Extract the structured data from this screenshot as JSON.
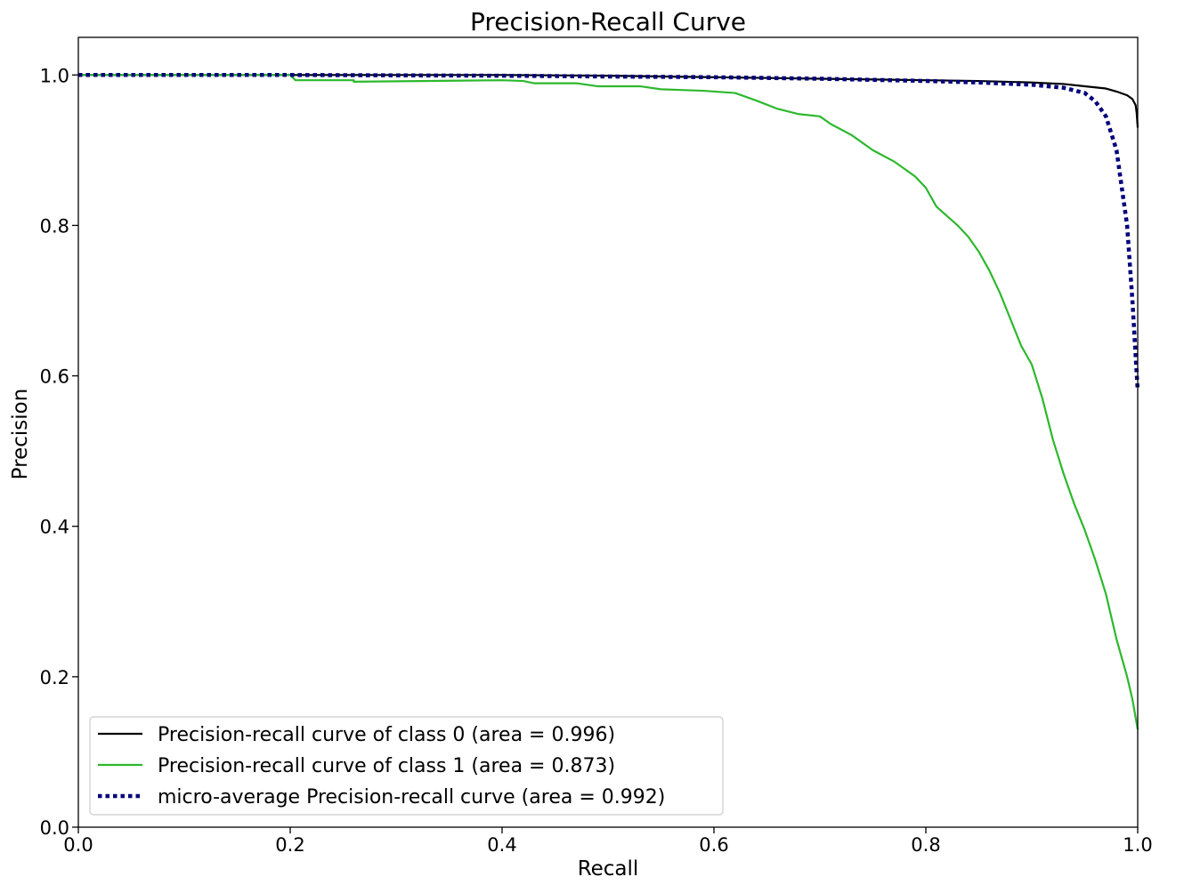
{
  "chart_data": {
    "type": "line",
    "title": "Precision-Recall Curve",
    "xlabel": "Recall",
    "ylabel": "Precision",
    "xlim": [
      0.0,
      1.0
    ],
    "ylim": [
      0.0,
      1.05
    ],
    "x_ticks": [
      "0.0",
      "0.2",
      "0.4",
      "0.6",
      "0.8",
      "1.0"
    ],
    "y_ticks": [
      "0.0",
      "0.2",
      "0.4",
      "0.6",
      "0.8",
      "1.0"
    ],
    "grid": false,
    "legend_position": "lower-left",
    "series": [
      {
        "name": "Precision-recall curve of class 0 (area = 0.996)",
        "color": "#000000",
        "style": "solid",
        "points": [
          [
            0.0,
            1.0
          ],
          [
            0.2,
            1.0
          ],
          [
            0.4,
            1.0
          ],
          [
            0.5,
            0.999
          ],
          [
            0.6,
            0.997
          ],
          [
            0.7,
            0.995
          ],
          [
            0.8,
            0.993
          ],
          [
            0.85,
            0.992
          ],
          [
            0.9,
            0.99
          ],
          [
            0.93,
            0.988
          ],
          [
            0.95,
            0.985
          ],
          [
            0.97,
            0.982
          ],
          [
            0.98,
            0.978
          ],
          [
            0.99,
            0.973
          ],
          [
            0.995,
            0.968
          ],
          [
            0.998,
            0.96
          ],
          [
            0.999,
            0.95
          ],
          [
            1.0,
            0.93
          ]
        ]
      },
      {
        "name": "Precision-recall curve of class 1 (area = 0.873)",
        "color": "#2db82d",
        "style": "solid",
        "points": [
          [
            0.0,
            1.0
          ],
          [
            0.2,
            1.0
          ],
          [
            0.205,
            0.993
          ],
          [
            0.26,
            0.993
          ],
          [
            0.26,
            0.991
          ],
          [
            0.4,
            0.993
          ],
          [
            0.42,
            0.992
          ],
          [
            0.43,
            0.989
          ],
          [
            0.47,
            0.989
          ],
          [
            0.49,
            0.985
          ],
          [
            0.53,
            0.985
          ],
          [
            0.55,
            0.981
          ],
          [
            0.59,
            0.979
          ],
          [
            0.62,
            0.976
          ],
          [
            0.64,
            0.966
          ],
          [
            0.66,
            0.955
          ],
          [
            0.68,
            0.948
          ],
          [
            0.7,
            0.945
          ],
          [
            0.71,
            0.935
          ],
          [
            0.73,
            0.92
          ],
          [
            0.75,
            0.9
          ],
          [
            0.77,
            0.885
          ],
          [
            0.79,
            0.865
          ],
          [
            0.8,
            0.85
          ],
          [
            0.81,
            0.825
          ],
          [
            0.83,
            0.8
          ],
          [
            0.84,
            0.785
          ],
          [
            0.85,
            0.765
          ],
          [
            0.86,
            0.74
          ],
          [
            0.87,
            0.71
          ],
          [
            0.88,
            0.675
          ],
          [
            0.89,
            0.64
          ],
          [
            0.9,
            0.615
          ],
          [
            0.91,
            0.57
          ],
          [
            0.92,
            0.515
          ],
          [
            0.93,
            0.47
          ],
          [
            0.94,
            0.43
          ],
          [
            0.95,
            0.395
          ],
          [
            0.96,
            0.355
          ],
          [
            0.97,
            0.31
          ],
          [
            0.98,
            0.25
          ],
          [
            0.99,
            0.2
          ],
          [
            0.995,
            0.17
          ],
          [
            1.0,
            0.13
          ]
        ]
      },
      {
        "name": "micro-average Precision-recall curve (area = 0.992)",
        "color": "#00007b",
        "style": "dotted",
        "points": [
          [
            0.0,
            1.0
          ],
          [
            0.2,
            1.0
          ],
          [
            0.4,
            0.999
          ],
          [
            0.5,
            0.998
          ],
          [
            0.6,
            0.997
          ],
          [
            0.7,
            0.995
          ],
          [
            0.8,
            0.992
          ],
          [
            0.85,
            0.99
          ],
          [
            0.9,
            0.987
          ],
          [
            0.93,
            0.983
          ],
          [
            0.95,
            0.976
          ],
          [
            0.96,
            0.965
          ],
          [
            0.97,
            0.945
          ],
          [
            0.98,
            0.9
          ],
          [
            0.99,
            0.8
          ],
          [
            0.995,
            0.7
          ],
          [
            1.0,
            0.58
          ]
        ]
      }
    ]
  }
}
